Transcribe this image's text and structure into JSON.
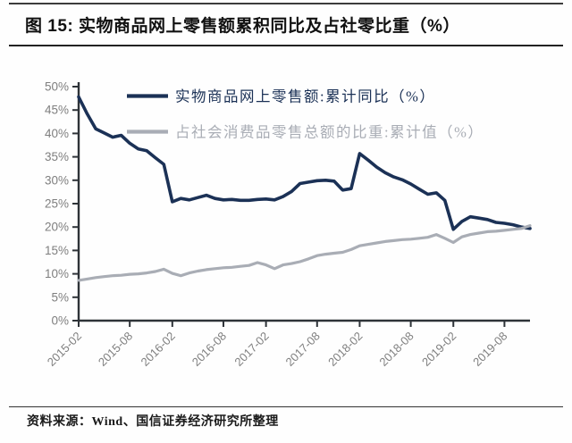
{
  "header": {
    "title": "图 15: 实物商品网上零售额累积同比及占社零比重（%）"
  },
  "source": {
    "text": "资料来源：Wind、国信证券经济研究所整理"
  },
  "chart_data": {
    "type": "line",
    "title": "实物商品网上零售额累积同比及占社零比重（%）",
    "xlabel": "",
    "ylabel": "",
    "ylim": [
      0,
      50
    ],
    "grid": false,
    "legend_position": "top-left-inside",
    "colors": {
      "axis": "#2e3338",
      "tick_label": "#7f7f7f",
      "series_dark": "#1b3156",
      "series_gray": "#a9adb5"
    },
    "yticks": [
      "0%",
      "5%",
      "10%",
      "15%",
      "20%",
      "25%",
      "30%",
      "35%",
      "40%",
      "45%",
      "50%"
    ],
    "xticks": [
      "2015-02",
      "2015-08",
      "2016-02",
      "2016-08",
      "2017-02",
      "2017-08",
      "2018-02",
      "2018-08",
      "2019-02",
      "2019-08"
    ],
    "categories": [
      "2015-02",
      "2015-03",
      "2015-04",
      "2015-05",
      "2015-06",
      "2015-07",
      "2015-08",
      "2015-09",
      "2015-10",
      "2015-11",
      "2015-12",
      "2016-02",
      "2016-03",
      "2016-04",
      "2016-05",
      "2016-06",
      "2016-07",
      "2016-08",
      "2016-09",
      "2016-10",
      "2016-11",
      "2016-12",
      "2017-02",
      "2017-03",
      "2017-04",
      "2017-05",
      "2017-06",
      "2017-07",
      "2017-08",
      "2017-09",
      "2017-10",
      "2017-11",
      "2017-12",
      "2018-02",
      "2018-03",
      "2018-04",
      "2018-05",
      "2018-06",
      "2018-07",
      "2018-08",
      "2018-09",
      "2018-10",
      "2018-11",
      "2018-12",
      "2019-02",
      "2019-03",
      "2019-04",
      "2019-05",
      "2019-06",
      "2019-07",
      "2019-08",
      "2019-09",
      "2019-10",
      "2019-11"
    ],
    "series": [
      {
        "name": "实物商品网上零售额:累计同比（%）",
        "color": "#1b3156",
        "stroke_width": 3.6,
        "values": [
          47.8,
          44.2,
          41.0,
          40.1,
          39.2,
          39.6,
          37.9,
          36.7,
          36.3,
          34.8,
          33.4,
          25.4,
          26.1,
          25.8,
          26.3,
          26.8,
          26.1,
          25.8,
          25.9,
          25.7,
          25.7,
          25.9,
          26.0,
          25.8,
          26.5,
          27.6,
          29.3,
          29.6,
          29.9,
          30.0,
          29.8,
          27.9,
          28.2,
          35.7,
          34.3,
          32.8,
          31.6,
          30.7,
          30.1,
          29.2,
          28.1,
          27.0,
          27.3,
          25.7,
          19.5,
          21.2,
          22.2,
          21.9,
          21.6,
          21.0,
          20.8,
          20.5,
          20.0,
          19.7
        ]
      },
      {
        "name": "占社会消费品零售总额的比重:累计值（%）",
        "color": "#a9adb5",
        "stroke_width": 3.2,
        "values": [
          8.6,
          8.9,
          9.2,
          9.4,
          9.6,
          9.7,
          9.9,
          10.0,
          10.2,
          10.5,
          11.0,
          10.1,
          9.6,
          10.2,
          10.6,
          10.9,
          11.1,
          11.3,
          11.4,
          11.6,
          11.8,
          12.4,
          11.9,
          11.1,
          11.9,
          12.2,
          12.6,
          13.2,
          13.9,
          14.2,
          14.4,
          14.6,
          15.2,
          16.0,
          16.3,
          16.6,
          16.9,
          17.1,
          17.3,
          17.4,
          17.6,
          17.8,
          18.4,
          17.6,
          16.7,
          17.9,
          18.4,
          18.7,
          19.0,
          19.1,
          19.3,
          19.5,
          19.7,
          20.3
        ]
      }
    ]
  }
}
